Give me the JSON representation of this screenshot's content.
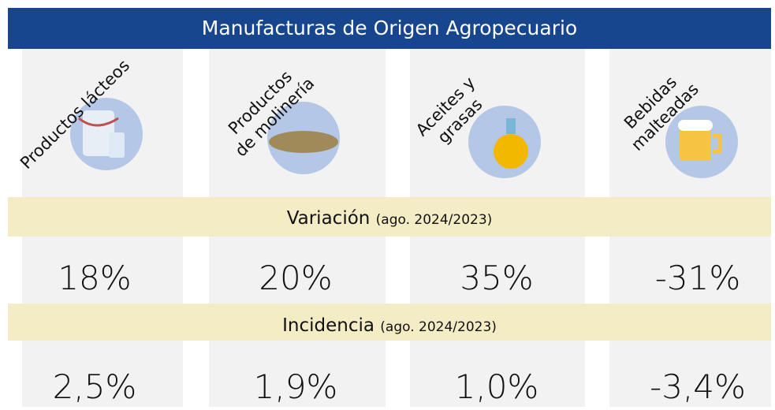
{
  "header": {
    "title": "Manufacturas de Origen Agropecuario"
  },
  "columns": [
    {
      "label": [
        "Productos lácteos"
      ]
    },
    {
      "label": [
        "Productos",
        "de molinería"
      ]
    },
    {
      "label": [
        "Aceites y",
        "grasas"
      ]
    },
    {
      "label": [
        "Bebidas",
        "malteadas"
      ]
    }
  ],
  "sections": [
    {
      "title": "Variación",
      "note": "(ago. 2024/2023)",
      "values": [
        "18%",
        "20%",
        "35%",
        "-31%"
      ]
    },
    {
      "title": "Incidencia",
      "note": "(ago. 2024/2023)",
      "values": [
        "2,5%",
        "1,9%",
        "1,0%",
        "-3,4%"
      ]
    }
  ]
}
